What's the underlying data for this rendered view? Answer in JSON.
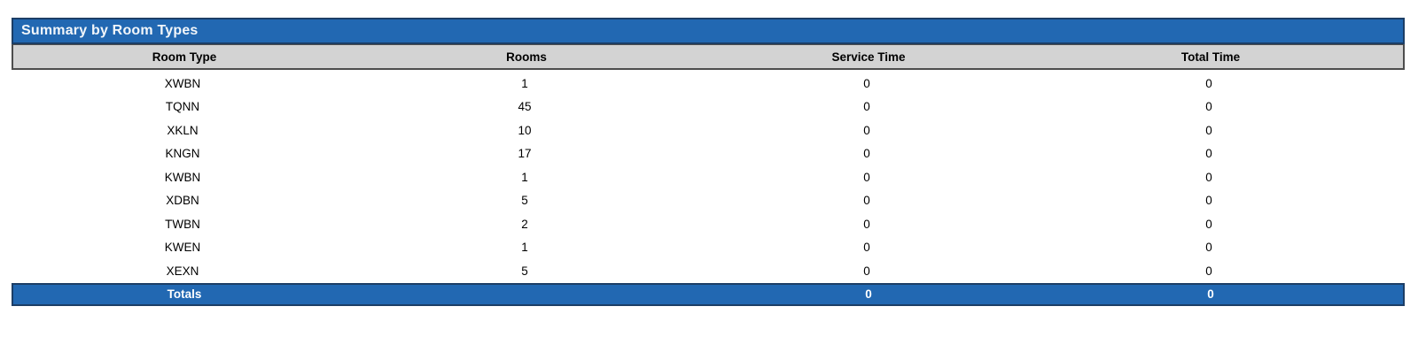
{
  "table": {
    "title": "Summary by Room Types",
    "columns": [
      "Room Type",
      "Rooms",
      "Service Time",
      "Total Time"
    ],
    "rows": [
      {
        "room_type": "XWBN",
        "rooms": "1",
        "service_time": "0",
        "total_time": "0"
      },
      {
        "room_type": "TQNN",
        "rooms": "45",
        "service_time": "0",
        "total_time": "0"
      },
      {
        "room_type": "XKLN",
        "rooms": "10",
        "service_time": "0",
        "total_time": "0"
      },
      {
        "room_type": "KNGN",
        "rooms": "17",
        "service_time": "0",
        "total_time": "0"
      },
      {
        "room_type": "KWBN",
        "rooms": "1",
        "service_time": "0",
        "total_time": "0"
      },
      {
        "room_type": "XDBN",
        "rooms": "5",
        "service_time": "0",
        "total_time": "0"
      },
      {
        "room_type": "TWBN",
        "rooms": "2",
        "service_time": "0",
        "total_time": "0"
      },
      {
        "room_type": "KWEN",
        "rooms": "1",
        "service_time": "0",
        "total_time": "0"
      },
      {
        "room_type": "XEXN",
        "rooms": "5",
        "service_time": "0",
        "total_time": "0"
      }
    ],
    "totals": {
      "label": "Totals",
      "rooms": "",
      "service_time": "0",
      "total_time": "0"
    },
    "colors": {
      "accent_blue": "#2268B2",
      "border_navy": "#1C3E66",
      "header_gray": "#D3D3D3",
      "header_border": "#4D4D4D",
      "body_text": "#000000",
      "totals_text": "#FFFFFF"
    }
  }
}
